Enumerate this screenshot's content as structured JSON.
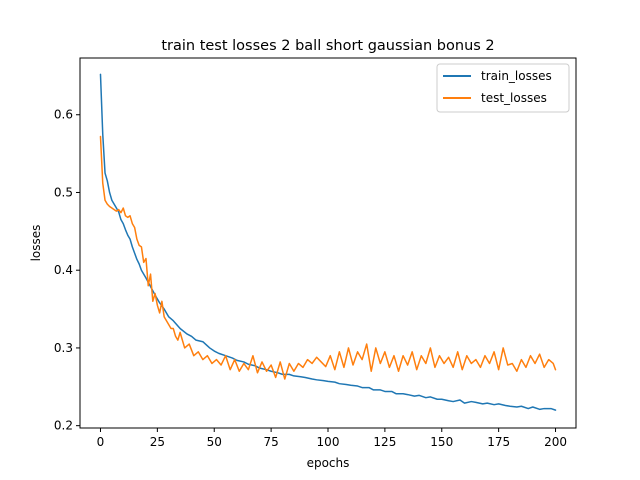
{
  "chart_data": {
    "type": "line",
    "title": "train test losses 2 ball short gaussian bonus 2",
    "xlabel": "epochs",
    "ylabel": "losses",
    "xlim": [
      -9,
      209
    ],
    "ylim": [
      0.197,
      0.673
    ],
    "xticks": [
      0,
      25,
      50,
      75,
      100,
      125,
      150,
      175,
      200
    ],
    "yticks": [
      0.2,
      0.3,
      0.4,
      0.5,
      0.6
    ],
    "ytick_labels": [
      "0.2",
      "0.3",
      "0.4",
      "0.5",
      "0.6"
    ],
    "grid": false,
    "legend_position": "top-right",
    "series": [
      {
        "name": "train_losses",
        "color": "#1f77b4",
        "x": [
          0,
          1,
          2,
          3,
          4,
          5,
          6,
          7,
          8,
          9,
          10,
          11,
          12,
          13,
          14,
          15,
          16,
          17,
          18,
          19,
          20,
          22,
          24,
          26,
          28,
          30,
          32,
          35,
          38,
          40,
          42,
          45,
          48,
          50,
          52,
          55,
          58,
          60,
          63,
          65,
          68,
          70,
          73,
          75,
          78,
          80,
          83,
          85,
          88,
          90,
          93,
          95,
          98,
          100,
          103,
          105,
          108,
          110,
          113,
          115,
          118,
          120,
          123,
          125,
          128,
          130,
          133,
          135,
          138,
          140,
          143,
          145,
          148,
          150,
          153,
          155,
          158,
          160,
          163,
          165,
          168,
          170,
          173,
          175,
          178,
          180,
          183,
          185,
          188,
          190,
          193,
          195,
          198,
          200
        ],
        "y": [
          0.652,
          0.575,
          0.525,
          0.515,
          0.5,
          0.49,
          0.485,
          0.48,
          0.475,
          0.465,
          0.46,
          0.452,
          0.445,
          0.44,
          0.43,
          0.422,
          0.414,
          0.408,
          0.4,
          0.395,
          0.39,
          0.379,
          0.368,
          0.358,
          0.35,
          0.34,
          0.335,
          0.325,
          0.318,
          0.315,
          0.31,
          0.308,
          0.3,
          0.296,
          0.293,
          0.29,
          0.287,
          0.284,
          0.282,
          0.279,
          0.277,
          0.274,
          0.272,
          0.27,
          0.268,
          0.266,
          0.266,
          0.264,
          0.263,
          0.262,
          0.26,
          0.259,
          0.258,
          0.257,
          0.256,
          0.254,
          0.253,
          0.252,
          0.251,
          0.249,
          0.249,
          0.246,
          0.246,
          0.244,
          0.244,
          0.241,
          0.241,
          0.24,
          0.238,
          0.239,
          0.236,
          0.237,
          0.234,
          0.234,
          0.232,
          0.231,
          0.233,
          0.229,
          0.231,
          0.23,
          0.228,
          0.229,
          0.227,
          0.228,
          0.226,
          0.225,
          0.224,
          0.225,
          0.222,
          0.224,
          0.221,
          0.222,
          0.222,
          0.22
        ]
      },
      {
        "name": "test_losses",
        "color": "#ff7f0e",
        "x": [
          0,
          1,
          2,
          3,
          4,
          5,
          6,
          7,
          8,
          9,
          10,
          11,
          12,
          13,
          14,
          15,
          16,
          17,
          18,
          19,
          20,
          21,
          22,
          23,
          24,
          25,
          26,
          27,
          28,
          29,
          30,
          31,
          32,
          33,
          34,
          35,
          37,
          39,
          41,
          43,
          45,
          47,
          49,
          51,
          53,
          55,
          57,
          59,
          61,
          63,
          65,
          67,
          69,
          71,
          73,
          75,
          77,
          79,
          81,
          83,
          85,
          87,
          89,
          91,
          93,
          95,
          97,
          99,
          101,
          103,
          105,
          107,
          109,
          111,
          113,
          115,
          117,
          119,
          121,
          123,
          125,
          127,
          129,
          131,
          133,
          135,
          137,
          139,
          141,
          143,
          145,
          147,
          149,
          151,
          153,
          155,
          157,
          159,
          161,
          163,
          165,
          167,
          169,
          171,
          173,
          175,
          177,
          179,
          181,
          183,
          185,
          187,
          189,
          191,
          193,
          195,
          197,
          199,
          200
        ],
        "y": [
          0.572,
          0.512,
          0.49,
          0.485,
          0.482,
          0.48,
          0.478,
          0.476,
          0.478,
          0.474,
          0.48,
          0.47,
          0.468,
          0.47,
          0.46,
          0.455,
          0.44,
          0.432,
          0.43,
          0.41,
          0.415,
          0.38,
          0.395,
          0.36,
          0.37,
          0.355,
          0.345,
          0.36,
          0.34,
          0.335,
          0.33,
          0.325,
          0.325,
          0.315,
          0.31,
          0.32,
          0.3,
          0.305,
          0.29,
          0.295,
          0.285,
          0.29,
          0.28,
          0.285,
          0.278,
          0.29,
          0.272,
          0.285,
          0.27,
          0.28,
          0.272,
          0.29,
          0.268,
          0.282,
          0.27,
          0.278,
          0.262,
          0.282,
          0.26,
          0.28,
          0.27,
          0.28,
          0.275,
          0.285,
          0.28,
          0.288,
          0.282,
          0.276,
          0.29,
          0.272,
          0.295,
          0.275,
          0.3,
          0.278,
          0.295,
          0.285,
          0.305,
          0.27,
          0.3,
          0.28,
          0.295,
          0.275,
          0.29,
          0.27,
          0.29,
          0.278,
          0.295,
          0.272,
          0.29,
          0.28,
          0.3,
          0.275,
          0.29,
          0.28,
          0.288,
          0.275,
          0.295,
          0.272,
          0.29,
          0.28,
          0.285,
          0.275,
          0.29,
          0.28,
          0.295,
          0.272,
          0.3,
          0.278,
          0.28,
          0.27,
          0.285,
          0.275,
          0.29,
          0.28,
          0.292,
          0.275,
          0.285,
          0.28,
          0.272
        ]
      }
    ]
  }
}
